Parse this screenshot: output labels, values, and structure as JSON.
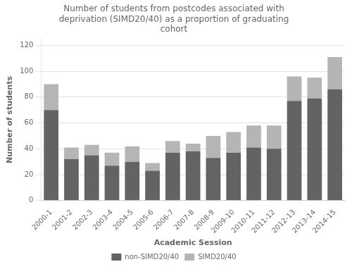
{
  "chart_data": {
    "type": "bar",
    "title": "Number of students from postcodes associated with\ndeprivation (SIMD20/40) as a proportion of graduating\ncohort",
    "xlabel": "Academic Session",
    "ylabel": "Number of students",
    "categories": [
      "2000-1",
      "2001-2",
      "2002-3",
      "2003-4",
      "2004-5",
      "2005-6",
      "2006-7",
      "2007-8",
      "2008-9",
      "2009-10",
      "2010-11",
      "2011-12",
      "2012-13",
      "2013-14",
      "2014-15"
    ],
    "series": [
      {
        "name": "non-SIMD20/40",
        "color": "#636363",
        "values": [
          70,
          32,
          35,
          27,
          30,
          23,
          37,
          38,
          33,
          37,
          41,
          40,
          77,
          79,
          86
        ]
      },
      {
        "name": "SIMD20/40",
        "color": "#b5b5b5",
        "values": [
          20,
          9,
          8,
          10,
          12,
          6,
          9,
          6,
          17,
          16,
          17,
          18,
          19,
          16,
          25
        ]
      }
    ],
    "stacked": true,
    "ylim": [
      0,
      125
    ],
    "yticks": [
      0,
      20,
      40,
      60,
      80,
      100,
      120
    ],
    "grid": true,
    "legend": "bottom"
  }
}
